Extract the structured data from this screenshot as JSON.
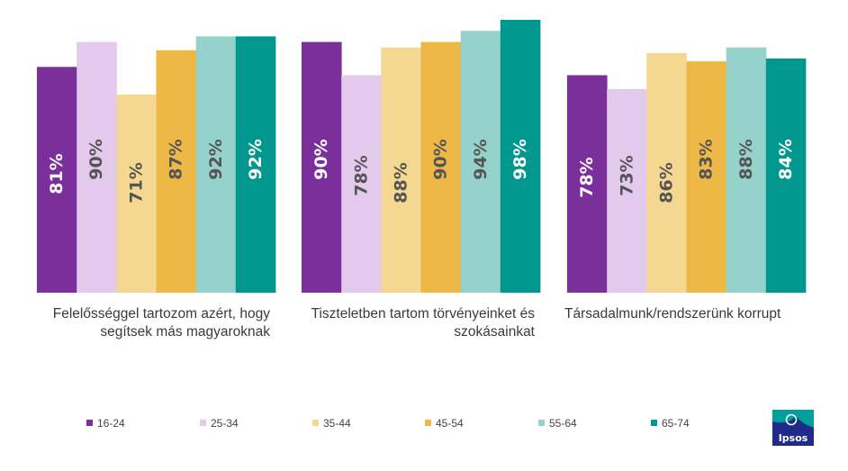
{
  "chart_data": {
    "type": "bar",
    "categories": [
      [
        "Felelősséggel tartozom azért, hogy",
        "segítsek más magyaroknak"
      ],
      [
        "Tiszteletben tartom törvényeinket és",
        "szokásainkat"
      ],
      [
        "Társadalmunk/rendszerünk korrupt"
      ]
    ],
    "series": [
      {
        "name": "16-24",
        "color": "#7b2f9b",
        "values": [
          81,
          90,
          78
        ]
      },
      {
        "name": "25-34",
        "color": "#e3c9ec",
        "values": [
          90,
          78,
          73
        ]
      },
      {
        "name": "35-44",
        "color": "#f4d891",
        "values": [
          71,
          88,
          86
        ]
      },
      {
        "name": "45-54",
        "color": "#eeb847",
        "values": [
          87,
          90,
          83
        ]
      },
      {
        "name": "55-64",
        "color": "#95d2cc",
        "values": [
          92,
          94,
          88
        ]
      },
      {
        "name": "65-74",
        "color": "#00978f",
        "values": [
          92,
          98,
          84
        ]
      }
    ],
    "label_suffix": "%",
    "label_colors": [
      "#ffffff",
      "#555555",
      "#555555",
      "#555555",
      "#555555",
      "#ffffff"
    ],
    "ylim": [
      0,
      100
    ],
    "grid": false,
    "legend_position": "bottom"
  },
  "logo": {
    "text": "Ipsos",
    "color": "#1f2a8a",
    "accent": "#00a19a"
  }
}
